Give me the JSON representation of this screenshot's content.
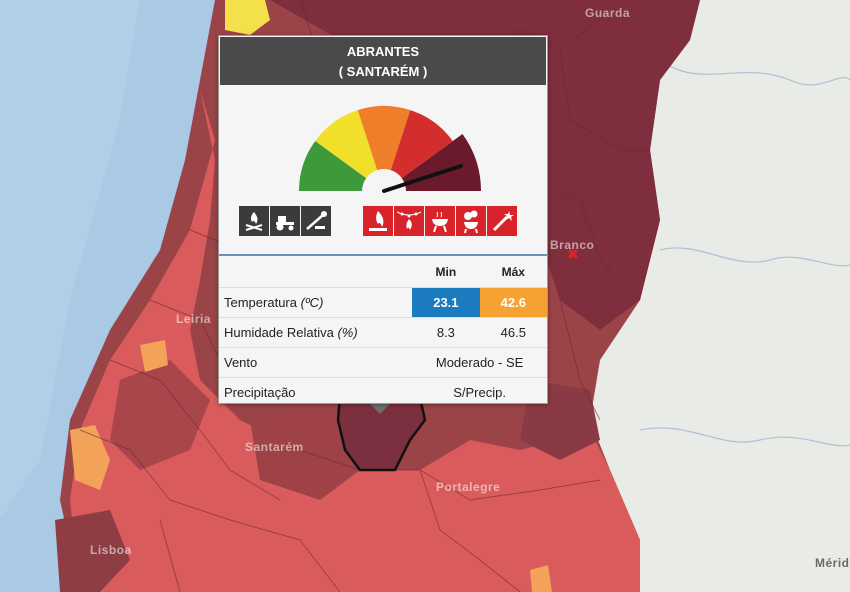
{
  "popup": {
    "title": "ABRANTES",
    "subtitle": "( SANTARÉM )"
  },
  "gauge": {
    "level_index": 4,
    "level_count": 5,
    "colors": [
      "#3d9a3a",
      "#f1e02a",
      "#ef7e2b",
      "#d42d2d",
      "#6b1a2b"
    ]
  },
  "allowed_icons": [
    "campfire-icon",
    "tractor-icon",
    "tools-icon"
  ],
  "forbidden_icons": [
    "fire-icon",
    "festival-fire-icon",
    "barbecue-icon",
    "smoke-icon",
    "fireworks-icon"
  ],
  "colors": {
    "min_bg": "#1a7bbf",
    "max_bg": "#f5a233",
    "forbidden_bg": "#d8232a",
    "allowed_bg": "#3b3b3b"
  },
  "weather": {
    "col_min": "Min",
    "col_max": "Máx",
    "temp_label": "Temperatura",
    "temp_unit": "(ºC)",
    "temp_min": "23.1",
    "temp_max": "42.6",
    "hum_label": "Humidade Relativa",
    "hum_unit": "(%)",
    "hum_min": "8.3",
    "hum_max": "46.5",
    "wind_label": "Vento",
    "wind_value": "Moderado - SE",
    "precip_label": "Precipitação",
    "precip_value": "S/Precip."
  },
  "map_labels": [
    "Guarda",
    "Branco",
    "Leiria",
    "Santarém",
    "Portalegre",
    "Lisboa",
    "Mérida"
  ]
}
